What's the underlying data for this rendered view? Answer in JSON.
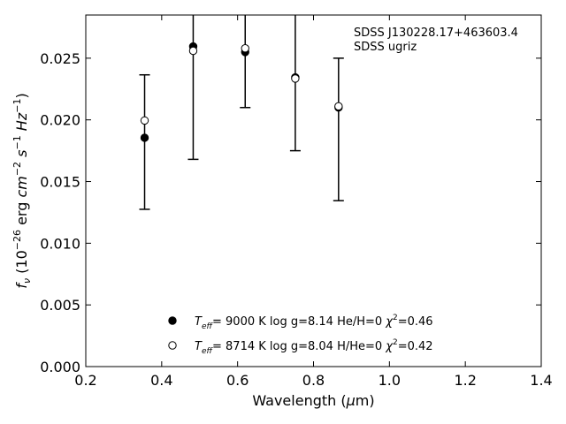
{
  "chart_data": {
    "type": "scatter",
    "xlabel": "Wavelength (μm)",
    "ylabel": "fν (10⁻²⁶ erg cm⁻² s⁻¹ Hz⁻¹)",
    "xlim": [
      0.2,
      1.4
    ],
    "ylim": [
      0.0,
      0.0285
    ],
    "xticks": [
      0.2,
      0.4,
      0.6,
      0.8,
      1.0,
      1.2,
      1.4
    ],
    "xtick_labels": [
      "0.2",
      "0.4",
      "0.6",
      "0.8",
      "1.0",
      "1.2",
      "1.4"
    ],
    "yticks": [
      0.0,
      0.005,
      0.01,
      0.015,
      0.02,
      0.025
    ],
    "ytick_labels": [
      "0.000",
      "0.005",
      "0.010",
      "0.015",
      "0.020",
      "0.025"
    ],
    "annotation": [
      "SDSS J130228.17+463603.4",
      "SDSS ugriz"
    ],
    "legend_position": "bottom-center",
    "observed": {
      "x": [
        0.355,
        0.483,
        0.62,
        0.752,
        0.866
      ],
      "y": [
        0.01855,
        0.02595,
        0.0255,
        0.02345,
        0.021
      ],
      "yerr_low": [
        0.01275,
        0.0168,
        0.021,
        0.0175,
        0.01345
      ],
      "yerr_high": [
        0.02365,
        0.0295,
        0.0295,
        0.0295,
        0.025
      ]
    },
    "series": [
      {
        "name": "Teff= 9000 K log g=8.14 He/H=0 χ²=0.46",
        "marker": "filled-circle",
        "x": [
          0.355,
          0.483,
          0.62,
          0.752,
          0.866
        ],
        "values": [
          0.01855,
          0.02595,
          0.0255,
          0.02345,
          0.021
        ]
      },
      {
        "name": "Teff= 8714 K log g=8.04 H/He=0 χ²=0.42",
        "marker": "open-circle",
        "x": [
          0.355,
          0.483,
          0.62,
          0.752,
          0.866
        ],
        "values": [
          0.01995,
          0.0256,
          0.0258,
          0.02335,
          0.0211
        ]
      }
    ],
    "legend": [
      {
        "marker": "filled",
        "teff_label": "T",
        "teff_sub": "eff",
        "teff_value": "=  9000 K",
        "logg": "log g=8.14",
        "comp": "He/H=0",
        "chi_label": "χ",
        "chi_sup": "2",
        "chi_value": "=0.46"
      },
      {
        "marker": "open",
        "teff_label": "T",
        "teff_sub": "eff",
        "teff_value": "=  8714 K",
        "logg": "log g=8.04",
        "comp": "H/He=0",
        "chi_label": "χ",
        "chi_sup": "2",
        "chi_value": "=0.42"
      }
    ]
  }
}
